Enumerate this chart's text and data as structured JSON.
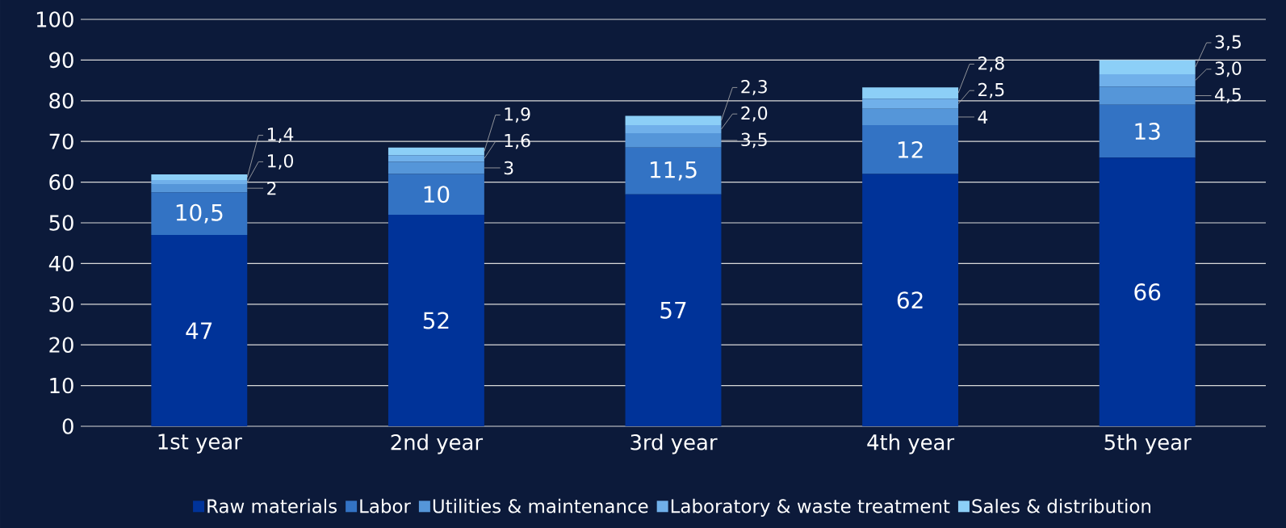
{
  "chart_data": {
    "type": "bar",
    "stacked": true,
    "categories": [
      "1st year",
      "2nd year",
      "3rd year",
      "4th year",
      "5th year"
    ],
    "series": [
      {
        "name": "Raw materials",
        "color": "#003399",
        "values": [
          47,
          52,
          57,
          62,
          66
        ],
        "value_labels": [
          "47",
          "52",
          "57",
          "62",
          "66"
        ]
      },
      {
        "name": "Labor",
        "color": "#3373c4",
        "values": [
          10.5,
          10,
          11.5,
          12,
          13
        ],
        "value_labels": [
          "10,5",
          "10",
          "11,5",
          "12",
          "13"
        ]
      },
      {
        "name": "Utilities & maintenance",
        "color": "#5596d9",
        "values": [
          2,
          3,
          3.5,
          4,
          4.5
        ],
        "value_labels": [
          "2",
          "3",
          "3,5",
          "4",
          "4,5"
        ]
      },
      {
        "name": "Laboratory & waste treatment",
        "color": "#70b0ea",
        "values": [
          1.0,
          1.6,
          2.0,
          2.5,
          3.0
        ],
        "value_labels": [
          "1,0",
          "1,6",
          "2,0",
          "2,5",
          "3,0"
        ]
      },
      {
        "name": "Sales & distribution",
        "color": "#8ccff7",
        "values": [
          1.4,
          1.9,
          2.3,
          2.8,
          3.5
        ],
        "value_labels": [
          "1,4",
          "1,9",
          "2,3",
          "2,8",
          "3,5"
        ]
      }
    ],
    "ylim": [
      0,
      100
    ],
    "yticks": [
      0,
      10,
      20,
      30,
      40,
      50,
      60,
      70,
      80,
      90,
      100
    ],
    "grid": "y",
    "legend": "bottom"
  }
}
